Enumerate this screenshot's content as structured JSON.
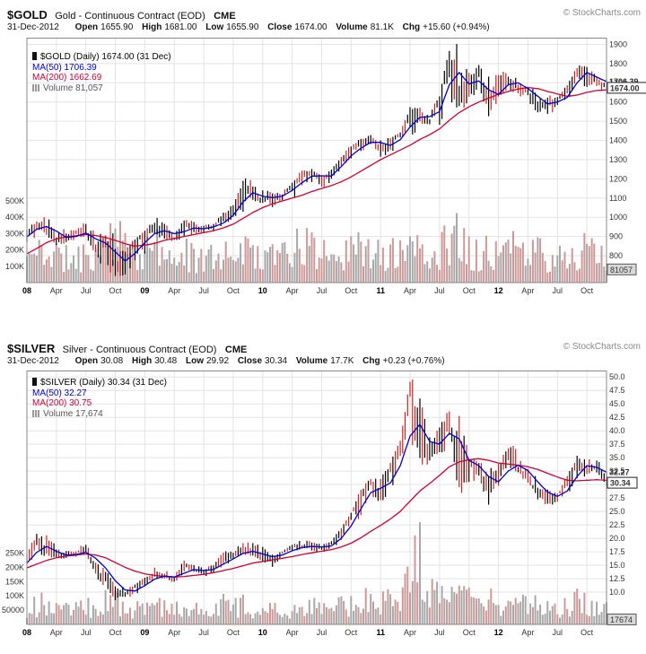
{
  "colors": {
    "ma50": "#0000cc",
    "ma200": "#cc0033",
    "candle_up": "#000000",
    "candle_down": "#cc2222",
    "volume_up": "#a8a8a8",
    "volume_down": "#cc9999",
    "grid": "#e3e3e3",
    "border": "#888888",
    "tag_close_bg": "#ffffff",
    "tag_volume_bg": "#d9d9d9"
  },
  "charts": [
    {
      "symbol": "$GOLD",
      "title": "Gold - Continuous Contract (EOD)",
      "exchange": "CME",
      "source": "© StockCharts.com",
      "date": "31-Dec-2012",
      "quote": {
        "open_label": "Open",
        "open": "1655.90",
        "high_label": "High",
        "high": "1681.00",
        "low_label": "Low",
        "low": "1655.90",
        "close_label": "Close",
        "close": "1674.00",
        "volume_label": "Volume",
        "volume": "81.1K",
        "chg_label": "Chg",
        "chg": "+15.60 (+0.94%)"
      },
      "legend": {
        "main": "$GOLD (Daily) 1674.00 (31 Dec)",
        "ma50": "MA(50) 1706.39",
        "ma200": "MA(200) 1662.69",
        "volume": "Volume 81,057"
      },
      "tags": {
        "ma50": "1706.39",
        "ma200": "1662.69",
        "close": "1674.00",
        "volume": "81057"
      },
      "chart_data": {
        "type": "candlestick",
        "period": "Daily, Jan 2008 - Dec 2012 (monthly approximations)",
        "x_ticks": [
          "08",
          "Apr",
          "Jul",
          "Oct",
          "09",
          "Apr",
          "Jul",
          "Oct",
          "10",
          "Apr",
          "Jul",
          "Oct",
          "11",
          "Apr",
          "Jul",
          "Oct",
          "12",
          "Apr",
          "Jul",
          "Oct"
        ],
        "y_ticks": [
          1900,
          1800,
          1700,
          1600,
          1500,
          1400,
          1300,
          1200,
          1100,
          1000,
          900,
          800
        ],
        "y_decimals": 0,
        "ylim": [
          660,
          1935
        ],
        "vol_tick_labels": [
          "500K",
          "400K",
          "300K",
          "200K",
          "100K"
        ],
        "vol_tick_values": [
          500,
          400,
          300,
          200,
          100
        ],
        "vol_axis_max": 1500,
        "close": [
          925,
          972,
          920,
          871,
          886,
          928,
          913,
          833,
          885,
          725,
          815,
          882,
          928,
          940,
          922,
          888,
          977,
          934,
          954,
          953,
          1008,
          1040,
          1175,
          1095,
          1081,
          1116,
          1114,
          1180,
          1215,
          1244,
          1170,
          1248,
          1308,
          1358,
          1385,
          1421,
          1333,
          1411,
          1438,
          1564,
          1535,
          1500,
          1628,
          1826,
          1622,
          1722,
          1745,
          1566,
          1738,
          1711,
          1669,
          1664,
          1558,
          1600,
          1615,
          1686,
          1772,
          1720,
          1714,
          1674
        ],
        "high": [
          935,
          990,
          1030,
          950,
          935,
          940,
          990,
          920,
          910,
          930,
          830,
          890,
          930,
          1005,
          990,
          920,
          985,
          990,
          960,
          970,
          1025,
          1070,
          1195,
          1225,
          1160,
          1125,
          1135,
          1180,
          1250,
          1260,
          1265,
          1250,
          1315,
          1385,
          1425,
          1430,
          1425,
          1415,
          1445,
          1575,
          1575,
          1555,
          1630,
          1915,
          1920,
          1755,
          1805,
          1755,
          1745,
          1790,
          1720,
          1680,
          1670,
          1640,
          1630,
          1690,
          1790,
          1800,
          1755,
          1725
        ],
        "low": [
          845,
          905,
          905,
          850,
          855,
          870,
          905,
          775,
          735,
          680,
          700,
          745,
          800,
          890,
          885,
          865,
          880,
          915,
          905,
          930,
          945,
          985,
          1025,
          1075,
          1075,
          1045,
          1085,
          1085,
          1155,
          1170,
          1155,
          1155,
          1235,
          1305,
          1325,
          1360,
          1310,
          1305,
          1380,
          1415,
          1460,
          1480,
          1480,
          1605,
          1535,
          1600,
          1665,
          1520,
          1550,
          1650,
          1630,
          1610,
          1525,
          1530,
          1545,
          1585,
          1685,
          1670,
          1670,
          1635
        ],
        "ma50": [
          898,
          938,
          952,
          928,
          896,
          900,
          918,
          888,
          866,
          820,
          772,
          812,
          868,
          915,
          930,
          915,
          925,
          944,
          940,
          950,
          970,
          1010,
          1080,
          1128,
          1110,
          1102,
          1110,
          1140,
          1180,
          1214,
          1216,
          1215,
          1264,
          1320,
          1360,
          1390,
          1390,
          1374,
          1404,
          1470,
          1520,
          1524,
          1550,
          1690,
          1754,
          1694,
          1710,
          1664,
          1640,
          1690,
          1700,
          1670,
          1630,
          1590,
          1600,
          1624,
          1700,
          1754,
          1730,
          1706
        ],
        "ma200": [
          810,
          838,
          868,
          888,
          898,
          904,
          910,
          905,
          895,
          880,
          862,
          850,
          855,
          864,
          880,
          890,
          900,
          910,
          920,
          930,
          945,
          964,
          994,
          1025,
          1050,
          1070,
          1085,
          1100,
          1115,
          1134,
          1150,
          1165,
          1185,
          1210,
          1240,
          1270,
          1300,
          1325,
          1350,
          1375,
          1405,
          1430,
          1460,
          1505,
          1545,
          1575,
          1600,
          1620,
          1640,
          1655,
          1668,
          1675,
          1670,
          1655,
          1642,
          1630,
          1636,
          1650,
          1660,
          1663
        ],
        "volume_k": [
          140,
          160,
          180,
          150,
          130,
          140,
          150,
          160,
          200,
          260,
          180,
          150,
          150,
          190,
          160,
          140,
          160,
          150,
          130,
          130,
          180,
          170,
          190,
          160,
          150,
          160,
          150,
          160,
          210,
          180,
          160,
          150,
          170,
          190,
          180,
          150,
          150,
          160,
          150,
          160,
          180,
          160,
          160,
          260,
          240,
          180,
          170,
          180,
          170,
          190,
          170,
          150,
          170,
          140,
          130,
          140,
          180,
          170,
          160,
          120
        ],
        "last": {
          "close": 1674.0,
          "ma50": 1706.39,
          "ma200": 1662.69,
          "volume_k": 81
        }
      }
    },
    {
      "symbol": "$SILVER",
      "title": "Silver - Continuous Contract (EOD)",
      "exchange": "CME",
      "source": "© StockCharts.com",
      "date": "31-Dec-2012",
      "quote": {
        "open_label": "Open",
        "open": "30.08",
        "high_label": "High",
        "high": "30.48",
        "low_label": "Low",
        "low": "29.92",
        "close_label": "Close",
        "close": "30.34",
        "volume_label": "Volume",
        "volume": "17.7K",
        "chg_label": "Chg",
        "chg": "+0.23 (+0.76%)"
      },
      "legend": {
        "main": "$SILVER (Daily) 30.34 (31 Dec)",
        "ma50": "MA(50) 32.27",
        "ma200": "MA(200) 30.75",
        "volume": "Volume 17,674"
      },
      "tags": {
        "ma50": "32.27",
        "ma200": "30.75",
        "close": "30.34",
        "volume": "17674"
      },
      "chart_data": {
        "type": "candlestick",
        "period": "Daily, Jan 2008 - Dec 2012 (monthly approximations)",
        "x_ticks": [
          "08",
          "Apr",
          "Jul",
          "Oct",
          "09",
          "Apr",
          "Jul",
          "Oct",
          "10",
          "Apr",
          "Jul",
          "Oct",
          "11",
          "Apr",
          "Jul",
          "Oct",
          "12",
          "Apr",
          "Jul",
          "Oct"
        ],
        "y_ticks": [
          50,
          47.5,
          45,
          42.5,
          40,
          37.5,
          35,
          32.5,
          30,
          27.5,
          25,
          22.5,
          20,
          17.5,
          15,
          12.5,
          10
        ],
        "y_decimals": 1,
        "ylim": [
          4.0,
          51.2
        ],
        "vol_tick_labels": [
          "250K",
          "200K",
          "150K",
          "100K",
          "50000"
        ],
        "vol_tick_values": [
          250,
          200,
          150,
          100,
          50
        ],
        "vol_axis_max": 890,
        "close": [
          16.9,
          19.8,
          17.2,
          16.6,
          16.9,
          17.5,
          17.8,
          13.7,
          12.5,
          9.3,
          9.5,
          11.3,
          12.6,
          13.1,
          13.1,
          12.3,
          15.6,
          13.9,
          13.9,
          14.9,
          16.6,
          16.3,
          18.5,
          16.8,
          16.2,
          16.4,
          17.5,
          18.6,
          18.4,
          18.7,
          18.0,
          19.4,
          21.8,
          24.6,
          28.2,
          30.9,
          28.3,
          33.9,
          37.7,
          48.6,
          38.3,
          34.8,
          40.1,
          41.8,
          30.0,
          34.3,
          32.8,
          27.9,
          33.3,
          35.5,
          32.5,
          31.0,
          27.8,
          27.6,
          27.9,
          31.4,
          34.6,
          32.3,
          33.3,
          30.3
        ],
        "high": [
          17.2,
          21.3,
          21.2,
          18.4,
          18.1,
          17.9,
          19.5,
          18.0,
          13.9,
          12.8,
          10.8,
          11.5,
          12.8,
          14.6,
          14.4,
          13.3,
          15.9,
          16.2,
          14.4,
          15.2,
          17.6,
          18.0,
          19.3,
          19.4,
          18.9,
          17.0,
          17.6,
          18.9,
          19.8,
          19.5,
          18.9,
          19.5,
          22.1,
          24.9,
          29.3,
          31.2,
          31.2,
          34.3,
          38.2,
          49.8,
          48.6,
          38.8,
          40.8,
          44.3,
          43.5,
          35.7,
          35.6,
          33.0,
          34.0,
          37.5,
          37.5,
          33.3,
          31.1,
          29.9,
          28.4,
          31.7,
          35.4,
          35.1,
          34.5,
          34.5
        ],
        "low": [
          14.9,
          16.5,
          16.7,
          16.1,
          16.3,
          16.4,
          17.3,
          12.2,
          10.3,
          8.5,
          8.4,
          9.4,
          10.5,
          12.4,
          12.5,
          11.7,
          12.5,
          13.6,
          12.7,
          13.5,
          14.6,
          15.8,
          16.2,
          16.8,
          15.6,
          14.7,
          16.6,
          17.5,
          17.1,
          17.6,
          17.3,
          17.9,
          19.4,
          21.9,
          24.0,
          27.9,
          26.5,
          28.3,
          33.0,
          37.5,
          32.3,
          33.4,
          33.6,
          38.2,
          28.0,
          29.3,
          30.7,
          26.2,
          28.3,
          33.2,
          31.5,
          30.3,
          26.8,
          26.1,
          26.2,
          27.1,
          30.7,
          31.7,
          32.2,
          29.6
        ],
        "ma50": [
          15.4,
          17.4,
          18.5,
          17.6,
          16.9,
          17.0,
          17.4,
          16.3,
          14.5,
          12.1,
          10.4,
          10.2,
          11.2,
          12.4,
          13.0,
          12.8,
          13.5,
          14.2,
          14.0,
          14.2,
          15.2,
          16.2,
          17.2,
          17.6,
          17.1,
          16.6,
          16.9,
          17.7,
          18.3,
          18.5,
          18.4,
          18.6,
          20.0,
          22.3,
          25.5,
          28.5,
          29.3,
          30.3,
          33.5,
          39.0,
          41.2,
          38.0,
          37.5,
          39.5,
          38.5,
          34.5,
          33.5,
          31.5,
          30.5,
          32.5,
          33.6,
          32.6,
          30.5,
          28.6,
          27.8,
          28.8,
          31.5,
          33.5,
          33.2,
          32.3
        ],
        "ma200": [
          14.5,
          15.2,
          15.9,
          16.4,
          16.7,
          16.9,
          17.1,
          16.9,
          16.4,
          15.5,
          14.6,
          13.9,
          13.4,
          13.1,
          12.9,
          12.8,
          12.9,
          13.1,
          13.3,
          13.6,
          14.0,
          14.4,
          14.9,
          15.4,
          15.7,
          16.0,
          16.3,
          16.6,
          17.0,
          17.3,
          17.6,
          17.9,
          18.4,
          19.1,
          20.1,
          21.3,
          22.4,
          23.6,
          25.0,
          26.9,
          28.8,
          30.2,
          31.7,
          33.3,
          34.2,
          34.6,
          34.8,
          34.5,
          34.0,
          33.8,
          33.6,
          33.3,
          32.8,
          32.1,
          31.4,
          30.8,
          30.7,
          30.8,
          30.9,
          30.8
        ],
        "volume_k": [
          45,
          60,
          65,
          50,
          45,
          45,
          55,
          60,
          70,
          75,
          55,
          45,
          50,
          55,
          50,
          45,
          55,
          50,
          45,
          45,
          60,
          55,
          60,
          50,
          45,
          50,
          45,
          50,
          65,
          55,
          50,
          50,
          60,
          65,
          75,
          70,
          70,
          75,
          80,
          170,
          200,
          90,
          85,
          100,
          110,
          80,
          70,
          75,
          70,
          75,
          65,
          55,
          65,
          50,
          45,
          55,
          70,
          60,
          55,
          45
        ],
        "last": {
          "close": 30.34,
          "ma50": 32.27,
          "ma200": 30.75,
          "volume_k": 17.7
        }
      }
    }
  ]
}
